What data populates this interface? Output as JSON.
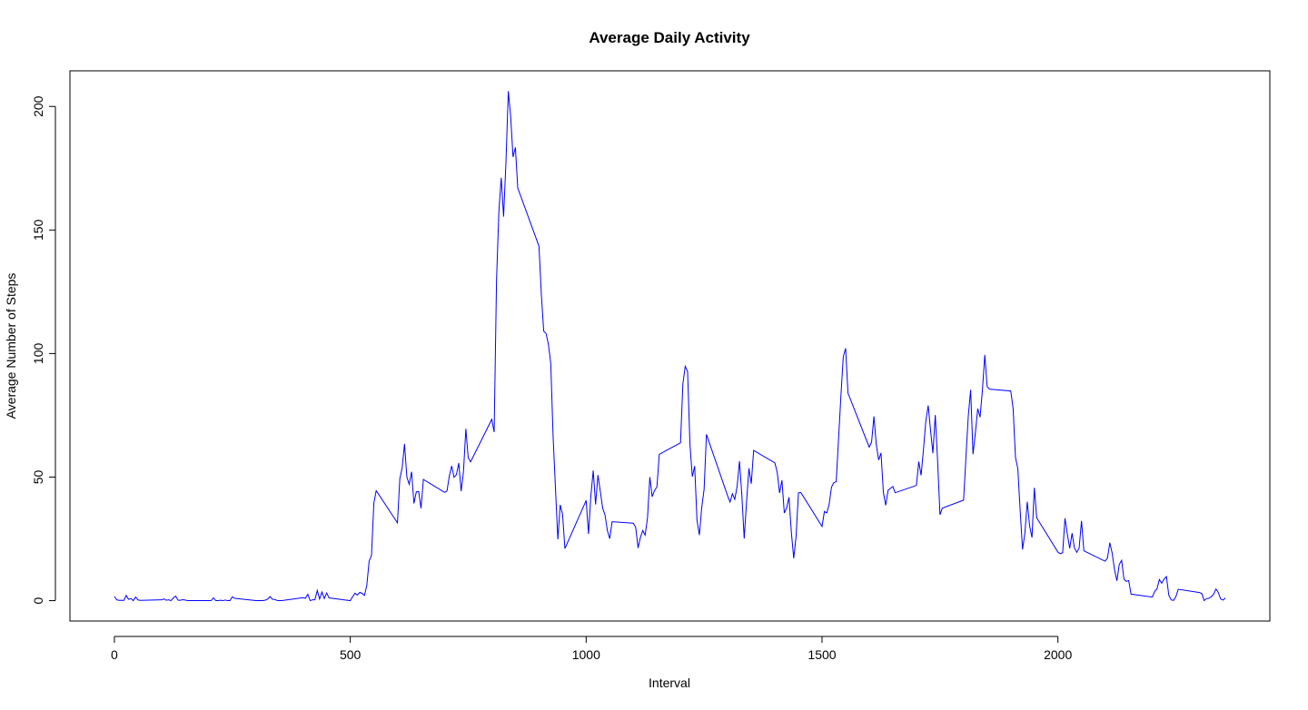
{
  "chart_data": {
    "type": "line",
    "title": "Average Daily Activity",
    "x_label": "Interval",
    "y_label": "Average Number of Steps",
    "xlim": [
      -94.2,
      2449.2
    ],
    "ylim": [
      -8.25,
      214.42
    ],
    "xticks": [
      0,
      500,
      1000,
      1500,
      2000
    ],
    "yticks": [
      0,
      50,
      100,
      150,
      200
    ],
    "grid": false,
    "x": [
      0,
      5,
      10,
      15,
      20,
      25,
      30,
      35,
      40,
      45,
      50,
      55,
      100,
      105,
      110,
      115,
      120,
      125,
      130,
      135,
      140,
      145,
      150,
      155,
      200,
      205,
      210,
      215,
      220,
      225,
      230,
      235,
      240,
      245,
      250,
      255,
      300,
      305,
      310,
      315,
      320,
      325,
      330,
      335,
      340,
      345,
      350,
      355,
      400,
      405,
      410,
      415,
      420,
      425,
      430,
      435,
      440,
      445,
      450,
      455,
      500,
      505,
      510,
      515,
      520,
      525,
      530,
      535,
      540,
      545,
      550,
      555,
      600,
      605,
      610,
      615,
      620,
      625,
      630,
      635,
      640,
      645,
      650,
      655,
      700,
      705,
      710,
      715,
      720,
      725,
      730,
      735,
      740,
      745,
      750,
      755,
      800,
      805,
      810,
      815,
      820,
      825,
      830,
      835,
      840,
      845,
      850,
      855,
      900,
      905,
      910,
      915,
      920,
      925,
      930,
      935,
      940,
      945,
      950,
      955,
      1000,
      1005,
      1010,
      1015,
      1020,
      1025,
      1030,
      1035,
      1040,
      1045,
      1050,
      1055,
      1100,
      1105,
      1110,
      1115,
      1120,
      1125,
      1130,
      1135,
      1140,
      1145,
      1150,
      1155,
      1200,
      1205,
      1210,
      1215,
      1220,
      1225,
      1230,
      1235,
      1240,
      1245,
      1250,
      1255,
      1300,
      1305,
      1310,
      1315,
      1320,
      1325,
      1330,
      1335,
      1340,
      1345,
      1350,
      1355,
      1400,
      1405,
      1410,
      1415,
      1420,
      1425,
      1430,
      1435,
      1440,
      1445,
      1450,
      1455,
      1500,
      1505,
      1510,
      1515,
      1520,
      1525,
      1530,
      1535,
      1540,
      1545,
      1550,
      1555,
      1600,
      1605,
      1610,
      1615,
      1620,
      1625,
      1630,
      1635,
      1640,
      1645,
      1650,
      1655,
      1700,
      1705,
      1710,
      1715,
      1720,
      1725,
      1730,
      1735,
      1740,
      1745,
      1750,
      1755,
      1800,
      1805,
      1810,
      1815,
      1820,
      1825,
      1830,
      1835,
      1840,
      1845,
      1850,
      1855,
      1900,
      1905,
      1910,
      1915,
      1920,
      1925,
      1930,
      1935,
      1940,
      1945,
      1950,
      1955,
      2000,
      2005,
      2010,
      2015,
      2020,
      2025,
      2030,
      2035,
      2040,
      2045,
      2050,
      2055,
      2100,
      2105,
      2110,
      2115,
      2120,
      2125,
      2130,
      2135,
      2140,
      2145,
      2150,
      2155,
      2200,
      2205,
      2210,
      2215,
      2220,
      2225,
      2230,
      2235,
      2240,
      2245,
      2250,
      2255,
      2300,
      2305,
      2310,
      2315,
      2320,
      2325,
      2330,
      2335,
      2340,
      2345,
      2350,
      2355
    ],
    "series": [
      {
        "name": "Average Number of Steps",
        "color": "#0000ff",
        "values": [
          1.72,
          0.34,
          0.13,
          0.15,
          0.08,
          2.09,
          0.53,
          0.87,
          0,
          1.47,
          0.3,
          0.13,
          0.32,
          0.68,
          0.15,
          0.34,
          0,
          1.11,
          1.83,
          0.17,
          0.17,
          0.38,
          0.26,
          0,
          0,
          0,
          1.13,
          0,
          0,
          0.13,
          0,
          0.23,
          0,
          0,
          1.55,
          0.94,
          0,
          0,
          0,
          0,
          0.21,
          0.62,
          1.62,
          0.58,
          0.49,
          0.08,
          0,
          0,
          1.19,
          0.94,
          2.57,
          0,
          0.34,
          0.36,
          4.11,
          0.66,
          3.49,
          0.83,
          3.11,
          1.11,
          0,
          1.57,
          3,
          2.25,
          3.32,
          2.96,
          2.09,
          6.06,
          16.02,
          18.34,
          39.45,
          44.49,
          31.49,
          49.26,
          53.77,
          63.45,
          49.96,
          47.08,
          52.15,
          39.34,
          44.02,
          44.17,
          37.36,
          49.04,
          43.81,
          44.38,
          50.51,
          54.51,
          49.92,
          50.98,
          55.68,
          44.32,
          52.26,
          69.55,
          57.85,
          56.15,
          73.38,
          68.21,
          129.43,
          157.53,
          171.15,
          155.4,
          177.3,
          206.17,
          195.92,
          179.57,
          183.4,
          167.02,
          143.45,
          124.04,
          109.11,
          108.11,
          103.72,
          95.96,
          66.21,
          45.23,
          24.79,
          38.75,
          34.98,
          21.06,
          40.57,
          26.98,
          42.42,
          52.66,
          38.92,
          50.79,
          44.28,
          37.42,
          34.7,
          28.34,
          25.09,
          31.94,
          31.36,
          29.68,
          21.32,
          25.55,
          28.38,
          26.47,
          33.43,
          49.98,
          42.04,
          44.6,
          46.04,
          59.19,
          63.87,
          87.7,
          94.85,
          92.77,
          63.4,
          50.17,
          54.47,
          32.42,
          26.53,
          37.74,
          45.06,
          67.28,
          42.34,
          39.89,
          43.26,
          40.98,
          46.25,
          56.43,
          42.75,
          25.13,
          39.96,
          53.55,
          47.32,
          60.81,
          55.75,
          51.96,
          43.58,
          48.7,
          35.47,
          37.55,
          41.85,
          27.51,
          17.11,
          26.08,
          43.62,
          43.77,
          30.02,
          36.08,
          35.49,
          38.85,
          45.96,
          47.75,
          48.13,
          65.32,
          82.91,
          98.66,
          102.11,
          83.96,
          62.13,
          64.13,
          74.55,
          63.17,
          56.91,
          59.77,
          43.87,
          38.57,
          44.66,
          45.45,
          46.21,
          43.68,
          46.62,
          56.3,
          50.72,
          61.23,
          72.72,
          78.94,
          68.94,
          59.66,
          75.09,
          56.51,
          34.77,
          37.45,
          40.68,
          58.02,
          74.7,
          85.32,
          59.26,
          67.77,
          77.7,
          74.25,
          85.34,
          99.45,
          86.58,
          85.6,
          84.87,
          77.83,
          58.04,
          53.36,
          36.32,
          20.72,
          27.4,
          40.02,
          30.21,
          25.55,
          45.66,
          33.53,
          19.62,
          19.02,
          19.34,
          33.34,
          26.81,
          21.17,
          27.3,
          21.34,
          19.55,
          21.32,
          32.3,
          20.15,
          15.94,
          17.23,
          23.45,
          19.25,
          12.45,
          8.02,
          14.66,
          16.3,
          8.68,
          7.79,
          8.13,
          2.62,
          1.45,
          3.68,
          4.81,
          8.51,
          7.08,
          8.7,
          9.75,
          2.21,
          0.32,
          0.11,
          1.6,
          4.6,
          3.3,
          2.85,
          0,
          0.83,
          0.96,
          1.58,
          2.6,
          4.7,
          3.3,
          0.64,
          0.23,
          1.08
        ]
      }
    ]
  }
}
